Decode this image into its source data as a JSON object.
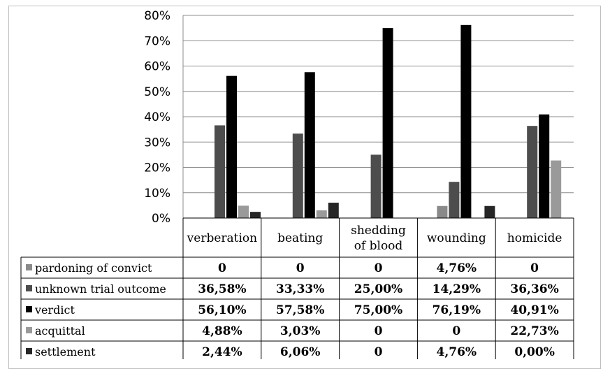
{
  "chart_data": {
    "type": "bar",
    "categories": [
      "verberation",
      "beating",
      "shedding of blood",
      "wounding",
      "homicide"
    ],
    "category_lines": [
      [
        "verberation"
      ],
      [
        "beating"
      ],
      [
        "shedding",
        "of blood"
      ],
      [
        "wounding"
      ],
      [
        "homicide"
      ]
    ],
    "y_ticks": [
      "0%",
      "10%",
      "20%",
      "30%",
      "40%",
      "50%",
      "60%",
      "70%",
      "80%"
    ],
    "ylim": [
      0,
      80
    ],
    "grid": true,
    "legend_position": "table-left",
    "series": [
      {
        "name": "pardoning of convict",
        "color": "#8a8a8a",
        "values": [
          0,
          0,
          0,
          4.76,
          0
        ],
        "labels": [
          "0",
          "0",
          "0",
          "4,76%",
          "0"
        ]
      },
      {
        "name": "unknown trial outcome",
        "color": "#4d4d4d",
        "values": [
          36.58,
          33.33,
          25.0,
          14.29,
          36.36
        ],
        "labels": [
          "36,58%",
          "33,33%",
          "25,00%",
          "14,29%",
          "36,36%"
        ]
      },
      {
        "name": "verdict",
        "color": "#000000",
        "values": [
          56.1,
          57.58,
          75.0,
          76.19,
          40.91
        ],
        "labels": [
          "56,10%",
          "57,58%",
          "75,00%",
          "76,19%",
          "40,91%"
        ]
      },
      {
        "name": "acquittal",
        "color": "#9a9a9a",
        "values": [
          4.88,
          3.03,
          0,
          0,
          22.73
        ],
        "labels": [
          "4,88%",
          "3,03%",
          "0",
          "0",
          "22,73%"
        ]
      },
      {
        "name": "settlement",
        "color": "#262626",
        "values": [
          2.44,
          6.06,
          0,
          4.76,
          0
        ],
        "labels": [
          "2,44%",
          "6,06%",
          "0",
          "4,76%",
          "0,00%"
        ]
      }
    ]
  }
}
